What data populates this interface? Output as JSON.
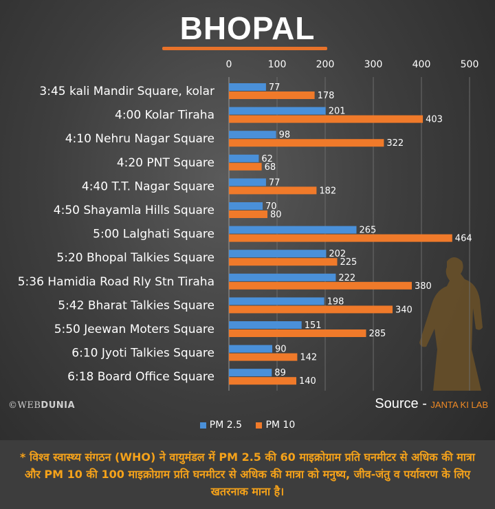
{
  "title": "BHOPAL",
  "colors": {
    "pm25": "#4a90d9",
    "pm10": "#f07a2a",
    "title_underline": "#e8722a",
    "footnote": "#f5a21a"
  },
  "chart_data": {
    "type": "bar",
    "orientation": "horizontal",
    "categories": [
      "3:45 kali Mandir Square, kolar",
      "4:00 Kolar Tiraha",
      "4:10 Nehru Nagar Square",
      "4:20 PNT Square",
      "4:40 T.T. Nagar Square",
      "4:50 Shayamla Hills Square",
      "5:00 Lalghati Square",
      "5:20 Bhopal Talkies Square",
      "5:36 Hamidia Road Rly Stn Tiraha",
      "5:42 Bharat Talkies Square",
      "5:50 Jeewan Moters Square",
      "6:10 Jyoti Talkies Square",
      "6:18 Board Office Square"
    ],
    "series": [
      {
        "name": "PM 2.5",
        "color": "#4a90d9",
        "values": [
          77,
          201,
          98,
          62,
          77,
          70,
          265,
          202,
          222,
          198,
          151,
          90,
          89
        ]
      },
      {
        "name": "PM 10",
        "color": "#f07a2a",
        "values": [
          178,
          403,
          322,
          68,
          182,
          80,
          464,
          225,
          380,
          340,
          285,
          142,
          140
        ]
      }
    ],
    "xlim": [
      0,
      500
    ],
    "xticks": [
      0,
      100,
      200,
      300,
      400,
      500
    ],
    "xaxis_position": "top",
    "grid": true,
    "legend_position": "bottom"
  },
  "logo": {
    "prefix": "©WEB",
    "bold": "DUNIA"
  },
  "source": {
    "label": "Source - ",
    "org": "JANTA KI LAB"
  },
  "footnote": "* विश्व स्वास्थ्य संगठन (WHO) ने वायुमंडल में PM 2.5 की 60 माइक्रोग्राम प्रति घनमीटर से अधिक की मात्रा और PM 10 की 100 माइक्रोग्राम प्रति घनमीटर से अधिक की मात्रा को मनुष्य, जीव-जंतु व पर्यावरण के लिए खतरनाक माना है।"
}
